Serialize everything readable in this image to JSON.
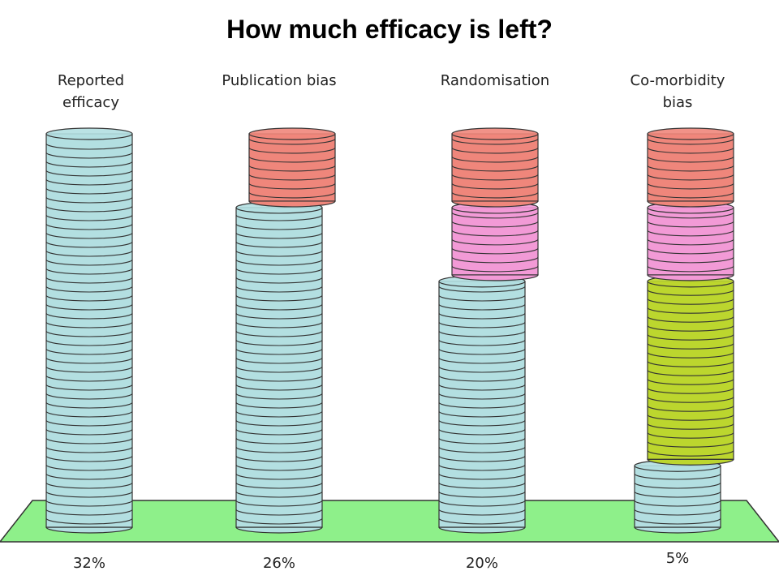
{
  "chart_data": {
    "type": "stacked-cylinder",
    "title": "How much efficacy is left?",
    "categories": [
      "Reported efficacy",
      "Publication bias",
      "Randomisation",
      "Co-morbidity bias"
    ],
    "series": [
      {
        "color": "#b3dfe1",
        "values": [
          32,
          26,
          20,
          5
        ],
        "value_labels": [
          "32%",
          "26%",
          "20%",
          "5%"
        ]
      },
      {
        "color": "#bcd62e",
        "values": [
          null,
          null,
          null,
          15
        ]
      },
      {
        "color": "#f29ad6",
        "values": [
          null,
          null,
          6,
          6
        ]
      },
      {
        "color": "#ef867b",
        "values": [
          null,
          6,
          6,
          6
        ]
      }
    ]
  }
}
